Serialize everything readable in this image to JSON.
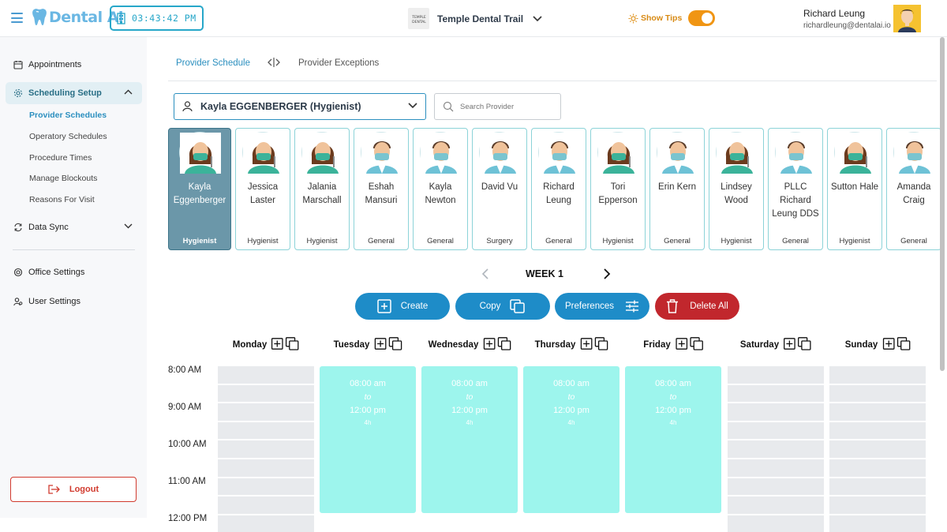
{
  "header": {
    "logo_text": "Dental Ai",
    "clock": "03:43:42 PM",
    "practice_name": "Temple Dental Trail",
    "practice_logo_text": "TEMPLE DENTAL TRAIL",
    "tips_label": "Show Tips",
    "tips_enabled": true,
    "user_name": "Richard Leung",
    "user_email": "richardleung@dentalai.io"
  },
  "sidebar": {
    "items": [
      {
        "label": "Appointments",
        "icon": "calendar-icon"
      },
      {
        "label": "Scheduling Setup",
        "icon": "gear-icon",
        "active": true
      },
      {
        "label": "Data Sync",
        "icon": "sync-icon"
      },
      {
        "label": "Office Settings",
        "icon": "settings-icon"
      },
      {
        "label": "User Settings",
        "icon": "users-icon"
      }
    ],
    "sub_items": [
      {
        "label": "Provider Schedules",
        "active": true
      },
      {
        "label": "Operatory Schedules"
      },
      {
        "label": "Procedure Times"
      },
      {
        "label": "Manage Blockouts"
      },
      {
        "label": "Reasons For Visit"
      }
    ],
    "logout_label": "Logout"
  },
  "tabs": {
    "provider_schedule": "Provider Schedule",
    "provider_exceptions": "Provider Exceptions"
  },
  "provider_select": {
    "value": "Kayla EGGENBERGER (Hygienist)"
  },
  "search": {
    "placeholder": "Search Provider"
  },
  "providers": [
    {
      "name": "Kayla Eggenberger",
      "role": "Hygienist",
      "selected": true,
      "avatar": "female"
    },
    {
      "name": "Jessica Laster",
      "role": "Hygienist",
      "avatar": "female"
    },
    {
      "name": "Jalania Marschall",
      "role": "Hygienist",
      "avatar": "female"
    },
    {
      "name": "Eshah Mansuri",
      "role": "General",
      "avatar": "male"
    },
    {
      "name": "Kayla Newton",
      "role": "General",
      "avatar": "male"
    },
    {
      "name": "David Vu",
      "role": "Surgery",
      "avatar": "male"
    },
    {
      "name": "Richard Leung",
      "role": "General",
      "avatar": "male"
    },
    {
      "name": "Tori Epperson",
      "role": "Hygienist",
      "avatar": "female"
    },
    {
      "name": "Erin Kern",
      "role": "General",
      "avatar": "male"
    },
    {
      "name": "Lindsey Wood",
      "role": "Hygienist",
      "avatar": "female"
    },
    {
      "name": "PLLC Richard Leung DDS",
      "role": "General",
      "avatar": "male"
    },
    {
      "name": "Sutton Hale",
      "role": "Hygienist",
      "avatar": "female"
    },
    {
      "name": "Amanda Craig",
      "role": "General",
      "avatar": "male"
    }
  ],
  "week": {
    "label": "WEEK 1"
  },
  "actions": {
    "create": "Create",
    "copy": "Copy",
    "preferences": "Preferences",
    "delete_all": "Delete All"
  },
  "days": [
    {
      "name": "Monday",
      "block": null
    },
    {
      "name": "Tuesday",
      "block": {
        "start": "08:00 am",
        "sep": "to",
        "end": "12:00 pm",
        "dur": "4h"
      }
    },
    {
      "name": "Wednesday",
      "block": {
        "start": "08:00 am",
        "sep": "to",
        "end": "12:00 pm",
        "dur": "4h"
      }
    },
    {
      "name": "Thursday",
      "block": {
        "start": "08:00 am",
        "sep": "to",
        "end": "12:00 pm",
        "dur": "4h"
      }
    },
    {
      "name": "Friday",
      "block": {
        "start": "08:00 am",
        "sep": "to",
        "end": "12:00 pm",
        "dur": "4h"
      }
    },
    {
      "name": "Saturday",
      "block": null
    },
    {
      "name": "Sunday",
      "block": null
    }
  ],
  "times": [
    "8:00 AM",
    "9:00 AM",
    "10:00 AM",
    "11:00 AM",
    "12:00 PM"
  ],
  "colors": {
    "accent": "#2b8fbf",
    "block": "#9df5ed",
    "danger": "#c1272d",
    "tips": "#f09513"
  }
}
